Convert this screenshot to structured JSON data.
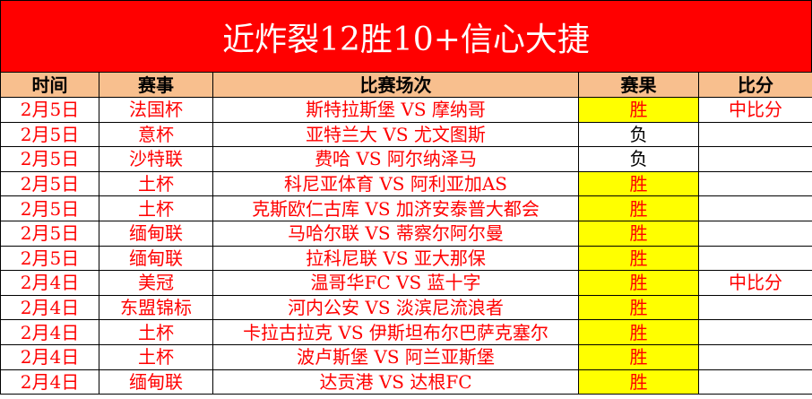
{
  "title": "近炸裂12胜10+信心大捷",
  "headers": [
    "时间",
    "赛事",
    "比赛场次",
    "赛果",
    "比分"
  ],
  "colors": {
    "title_bg": "#ff0000",
    "header_bg": "#f8bf8e",
    "win_bg": "#ffff00",
    "text": "#ff0000"
  },
  "rows": [
    {
      "date": "2月5日",
      "league": "法国杯",
      "match": "斯特拉斯堡 VS 摩纳哥",
      "result": "胜",
      "score": "中比分"
    },
    {
      "date": "2月5日",
      "league": "意杯",
      "match": "亚特兰大 VS 尤文图斯",
      "result": "负",
      "score": ""
    },
    {
      "date": "2月5日",
      "league": "沙特联",
      "match": "费哈 VS 阿尔纳泽马",
      "result": "负",
      "score": ""
    },
    {
      "date": "2月5日",
      "league": "土杯",
      "match": "科尼亚体育 VS 阿利亚加AS",
      "result": "胜",
      "score": ""
    },
    {
      "date": "2月5日",
      "league": "土杯",
      "match": "克斯欧仁古库 VS 加济安泰普大都会",
      "result": "胜",
      "score": ""
    },
    {
      "date": "2月5日",
      "league": "缅甸联",
      "match": "马哈尔联 VS 蒂察尔阿尔曼",
      "result": "胜",
      "score": ""
    },
    {
      "date": "2月5日",
      "league": "缅甸联",
      "match": "拉科尼联 VS 亚大那保",
      "result": "胜",
      "score": ""
    },
    {
      "date": "2月4日",
      "league": "美冠",
      "match": "温哥华FC VS 蓝十字",
      "result": "胜",
      "score": "中比分"
    },
    {
      "date": "2月4日",
      "league": "东盟锦标",
      "match": "河内公安 VS 淡滨尼流浪者",
      "result": "胜",
      "score": ""
    },
    {
      "date": "2月4日",
      "league": "土杯",
      "match": "卡拉古拉克 VS 伊斯坦布尔巴萨克塞尔",
      "result": "胜",
      "score": ""
    },
    {
      "date": "2月4日",
      "league": "土杯",
      "match": "波卢斯堡 VS 阿兰亚斯堡",
      "result": "胜",
      "score": ""
    },
    {
      "date": "2月4日",
      "league": "缅甸联",
      "match": "达贡港 VS 达根FC",
      "result": "胜",
      "score": ""
    }
  ]
}
